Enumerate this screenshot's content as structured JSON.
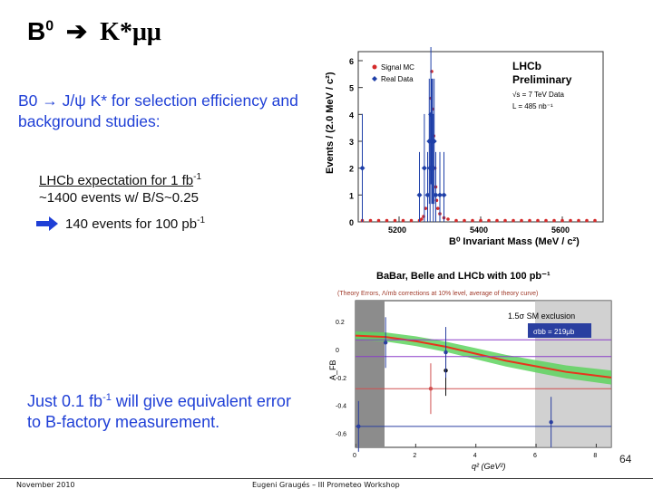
{
  "slide": {
    "title_prefix": "B",
    "title_sup": "0",
    "title_arrow": "➔",
    "title_suffix": "K*μμ",
    "para1": "B0 → J/ψ K* for selection efficiency and background studies:",
    "lhcb_line1_prefix": "LHCb expectation for 1 fb",
    "lhcb_line1_sup": "-1",
    "lhcb_line2": "~1400 events w/  B/S~0.25",
    "lhcb_line3_prefix": "140 events for 100 pb",
    "lhcb_line3_sup": "-1",
    "para2_prefix": "Just 0.1 fb",
    "para2_sup": "-1",
    "para2_suffix": " will give equivalent error to B-factory measurement.",
    "page_number": "64",
    "footer_left": "November 2010",
    "footer_center": "Eugeni Graugés – III Prometeo Workshop"
  },
  "plot1": {
    "ylabel": "Events / (2.0 MeV / c²)",
    "xlabel": "B⁰ Invariant Mass (MeV / c²)",
    "legend": [
      "Signal MC",
      "Real Data"
    ],
    "title1": "LHCb",
    "title2": "Preliminary",
    "info1": "√s = 7 TeV Data",
    "info2": "L = 485 nb⁻¹",
    "yticks": [
      "0",
      "1",
      "2",
      "3",
      "4",
      "5",
      "6"
    ],
    "xticks": [
      "5200",
      "5400",
      "5600"
    ],
    "colors": {
      "mc": "#d42a2a",
      "data": "#1e3fa8"
    }
  },
  "plot2": {
    "title": "BaBar, Belle and LHCb with 100 pb⁻¹",
    "subtitle": "(Theory Errors, Λ/mb corrections at 10% level, average of theory curve)",
    "exclusion": "1.5σ SM exclusion",
    "sigma_box": "σbb = 219μb",
    "ylabel": "A_FB",
    "xlabel": "q² (GeV²)",
    "yticks": [
      "0.2",
      "0",
      "-0.2",
      "-0.4",
      "-0.6"
    ],
    "xticks": [
      "0",
      "2",
      "4",
      "6",
      "8"
    ]
  },
  "chart_data": [
    {
      "type": "scatter",
      "xlabel": "B⁰ Invariant Mass (MeV / c²)",
      "ylabel": "Events / (2.0 MeV / c²)",
      "xlim": [
        5100,
        5700
      ],
      "ylim": [
        0,
        6
      ],
      "series": [
        {
          "name": "Signal MC",
          "x": [
            5110,
            5130,
            5150,
            5170,
            5190,
            5210,
            5230,
            5250,
            5255,
            5260,
            5265,
            5270,
            5275,
            5278,
            5280,
            5282,
            5285,
            5288,
            5290,
            5292,
            5295,
            5300,
            5310,
            5320,
            5340,
            5360,
            5380,
            5400,
            5420,
            5440,
            5460,
            5480,
            5500,
            5520,
            5540,
            5560,
            5580,
            5600,
            5620,
            5640,
            5660,
            5680
          ],
          "y": [
            0.05,
            0.05,
            0.05,
            0.05,
            0.05,
            0.05,
            0.05,
            0.05,
            0.1,
            0.2,
            0.5,
            1.0,
            3.0,
            4.6,
            5.6,
            4.2,
            3.2,
            2.0,
            1.3,
            0.8,
            0.5,
            0.3,
            0.15,
            0.1,
            0.05,
            0.05,
            0.05,
            0.05,
            0.05,
            0.05,
            0.05,
            0.05,
            0.05,
            0.05,
            0.05,
            0.05,
            0.05,
            0.05,
            0.05,
            0.05,
            0.05,
            0.05
          ]
        },
        {
          "name": "Real Data",
          "x": [
            5110,
            5250,
            5262,
            5270,
            5274,
            5276,
            5278,
            5280,
            5282,
            5284,
            5286,
            5290,
            5300,
            5310
          ],
          "y": [
            2,
            1,
            2,
            1,
            3,
            2,
            4,
            3,
            3,
            2,
            3,
            1,
            1,
            1
          ]
        }
      ]
    },
    {
      "type": "line",
      "xlabel": "q² (GeV²)",
      "ylabel": "A_FB",
      "xlim": [
        0,
        8.5
      ],
      "ylim": [
        -0.7,
        0.35
      ],
      "series": [
        {
          "name": "",
          "x": [
            0,
            1,
            2,
            3,
            4,
            5,
            6,
            7,
            8.5
          ],
          "y": [
            0.1,
            0.09,
            0.06,
            0.02,
            -0.03,
            -0.08,
            -0.12,
            -0.16,
            -0.2
          ]
        }
      ],
      "points": [
        {
          "x": 1.0,
          "y": 0.05
        },
        {
          "x": 3.0,
          "y": -0.15
        },
        {
          "x": 3.0,
          "y": -0.02
        },
        {
          "x": 0.1,
          "y": -0.55
        },
        {
          "x": 2.5,
          "y": -0.28
        },
        {
          "x": 6.5,
          "y": -0.52
        }
      ]
    }
  ]
}
